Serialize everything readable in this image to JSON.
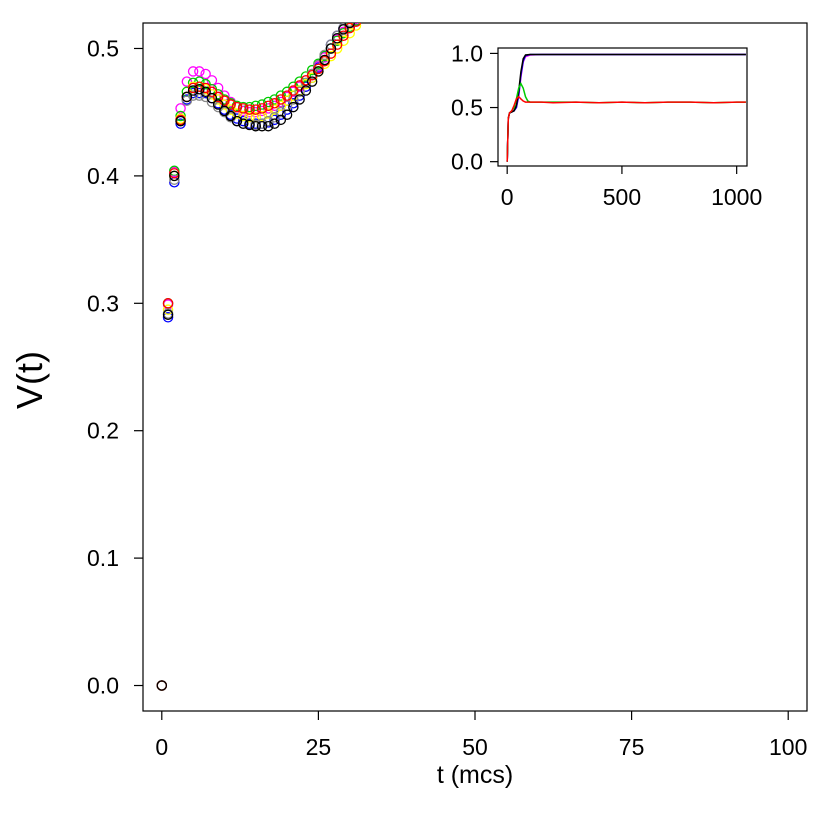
{
  "chart_data": [
    {
      "type": "scatter",
      "role": "main",
      "xlabel": "t (mcs)",
      "ylabel": "V(t)",
      "xlim": [
        -3,
        103
      ],
      "ylim": [
        -0.02,
        0.52
      ],
      "xticks": [
        0,
        25,
        50,
        75,
        100
      ],
      "xtick_labels": [
        "0",
        "25",
        "50",
        "75",
        "100"
      ],
      "yticks": [
        0.0,
        0.1,
        0.2,
        0.3,
        0.4,
        0.5
      ],
      "ytick_labels": [
        "0.0",
        "0.1",
        "0.2",
        "0.3",
        "0.4",
        "0.5"
      ],
      "grid": false,
      "marker": "open-circle",
      "series": [
        {
          "color": "#0000ff",
          "x": [
            0,
            1,
            2,
            3,
            4,
            5,
            6,
            7,
            8,
            9,
            10,
            11,
            12,
            13,
            14,
            15,
            16,
            17,
            18,
            19,
            20,
            21,
            22,
            23,
            24,
            25,
            26,
            27,
            28,
            29,
            30,
            31
          ],
          "y": [
            0,
            0.289,
            0.395,
            0.441,
            0.46,
            0.465,
            0.465,
            0.465,
            0.461,
            0.457,
            0.452,
            0.448,
            0.445,
            0.443,
            0.441,
            0.441,
            0.441,
            0.442,
            0.444,
            0.448,
            0.452,
            0.457,
            0.463,
            0.47,
            0.477,
            0.485,
            0.494,
            0.503,
            0.51,
            0.516,
            0.52,
            0.523
          ]
        },
        {
          "color": "#ff00ff",
          "x": [
            0,
            1,
            2,
            3,
            4,
            5,
            6,
            7,
            8,
            9,
            10,
            11,
            12,
            13,
            14,
            15,
            16,
            17,
            18,
            19,
            20,
            21,
            22,
            23,
            24,
            25,
            26,
            27,
            28,
            29,
            30,
            31
          ],
          "y": [
            0,
            0.299,
            0.403,
            0.453,
            0.474,
            0.482,
            0.482,
            0.48,
            0.475,
            0.469,
            0.463,
            0.458,
            0.454,
            0.451,
            0.45,
            0.45,
            0.451,
            0.453,
            0.455,
            0.458,
            0.462,
            0.466,
            0.47,
            0.475,
            0.48,
            0.486,
            0.493,
            0.5,
            0.507,
            0.513,
            0.519,
            0.523
          ]
        },
        {
          "color": "#00cc00",
          "x": [
            0,
            1,
            2,
            3,
            4,
            5,
            6,
            7,
            8,
            9,
            10,
            11,
            12,
            13,
            14,
            15,
            16,
            17,
            18,
            19,
            20,
            21,
            22,
            23,
            24,
            25,
            26,
            27,
            28,
            29,
            30,
            31
          ],
          "y": [
            0,
            0.3,
            0.404,
            0.447,
            0.466,
            0.473,
            0.474,
            0.472,
            0.468,
            0.464,
            0.46,
            0.457,
            0.455,
            0.454,
            0.454,
            0.455,
            0.456,
            0.458,
            0.46,
            0.463,
            0.466,
            0.47,
            0.474,
            0.478,
            0.483,
            0.488,
            0.494,
            0.5,
            0.506,
            0.512,
            0.517,
            0.522
          ]
        },
        {
          "color": "#ffff00",
          "x": [
            0,
            1,
            2,
            3,
            4,
            5,
            6,
            7,
            8,
            9,
            10,
            11,
            12,
            13,
            14,
            15,
            16,
            17,
            18,
            19,
            20,
            21,
            22,
            23,
            24,
            25,
            26,
            27,
            28,
            29,
            30,
            31
          ],
          "y": [
            0,
            0.295,
            0.4,
            0.445,
            0.462,
            0.47,
            0.47,
            0.468,
            0.464,
            0.46,
            0.456,
            0.452,
            0.449,
            0.447,
            0.446,
            0.446,
            0.447,
            0.449,
            0.452,
            0.455,
            0.459,
            0.463,
            0.467,
            0.472,
            0.477,
            0.482,
            0.488,
            0.494,
            0.5,
            0.506,
            0.512,
            0.518
          ]
        },
        {
          "color": "#888888",
          "x": [
            0,
            1,
            2,
            3,
            4,
            5,
            6,
            7,
            8,
            9,
            10,
            11,
            12,
            13,
            14,
            15,
            16,
            17,
            18,
            19,
            20,
            21,
            22,
            23,
            24,
            25,
            26,
            27,
            28,
            29,
            30,
            31
          ],
          "y": [
            0,
            0.292,
            0.397,
            0.443,
            0.459,
            0.463,
            0.463,
            0.462,
            0.458,
            0.454,
            0.45,
            0.446,
            0.443,
            0.441,
            0.44,
            0.44,
            0.441,
            0.443,
            0.446,
            0.45,
            0.455,
            0.46,
            0.466,
            0.473,
            0.48,
            0.487,
            0.495,
            0.503,
            0.51,
            0.516,
            0.521,
            0.524
          ]
        },
        {
          "color": "#ff0000",
          "x": [
            0,
            1,
            2,
            3,
            4,
            5,
            6,
            7,
            8,
            9,
            10,
            11,
            12,
            13,
            14,
            15,
            16,
            17,
            18,
            19,
            20,
            21,
            22,
            23,
            24,
            25,
            26,
            27,
            28,
            29,
            30,
            31
          ],
          "y": [
            0,
            0.3,
            0.402,
            0.444,
            0.462,
            0.469,
            0.47,
            0.469,
            0.466,
            0.462,
            0.459,
            0.456,
            0.454,
            0.453,
            0.452,
            0.452,
            0.453,
            0.455,
            0.457,
            0.46,
            0.463,
            0.467,
            0.471,
            0.475,
            0.479,
            0.484,
            0.49,
            0.496,
            0.503,
            0.51,
            0.516,
            0.521
          ]
        },
        {
          "color": "#000000",
          "x": [
            0,
            1,
            2,
            3,
            4,
            5,
            6,
            7,
            8,
            9,
            10,
            11,
            12,
            13,
            14,
            15,
            16,
            17,
            18,
            19,
            20,
            21,
            22,
            23,
            24,
            25,
            26,
            27,
            28,
            29,
            30,
            31
          ],
          "y": [
            0,
            0.291,
            0.4,
            0.443,
            0.462,
            0.467,
            0.468,
            0.466,
            0.461,
            0.456,
            0.451,
            0.447,
            0.443,
            0.441,
            0.44,
            0.439,
            0.439,
            0.439,
            0.441,
            0.444,
            0.448,
            0.454,
            0.46,
            0.467,
            0.474,
            0.482,
            0.491,
            0.5,
            0.508,
            0.515,
            0.52,
            0.524
          ]
        }
      ]
    },
    {
      "type": "line",
      "role": "inset",
      "xlim": [
        -40,
        1045
      ],
      "ylim": [
        -0.04,
        1.05
      ],
      "xticks": [
        0,
        500,
        1000
      ],
      "xtick_labels": [
        "0",
        "500",
        "1000"
      ],
      "yticks": [
        0.0,
        0.5,
        1.0
      ],
      "ytick_labels": [
        "0.0",
        "0.5",
        "1.0"
      ],
      "grid": false,
      "series": [
        {
          "color": "#ff00ff",
          "x": [
            0,
            5,
            10,
            20,
            30,
            40,
            50,
            60,
            70,
            80,
            100,
            150,
            300,
            500,
            700,
            900,
            1040
          ],
          "y": [
            0,
            0.4,
            0.45,
            0.47,
            0.47,
            0.5,
            0.6,
            0.78,
            0.92,
            0.97,
            0.985,
            0.99,
            0.99,
            0.99,
            0.99,
            0.99,
            0.99
          ]
        },
        {
          "color": "#0000ff",
          "x": [
            0,
            5,
            10,
            20,
            30,
            40,
            50,
            60,
            70,
            80,
            100,
            150,
            300,
            500,
            700,
            900,
            1040
          ],
          "y": [
            0,
            0.4,
            0.45,
            0.46,
            0.47,
            0.5,
            0.62,
            0.8,
            0.93,
            0.98,
            0.99,
            0.99,
            0.99,
            0.99,
            0.99,
            0.99,
            0.99
          ]
        },
        {
          "color": "#000000",
          "x": [
            0,
            5,
            10,
            20,
            30,
            40,
            50,
            60,
            70,
            80,
            100,
            150,
            300,
            500,
            700,
            900,
            1040
          ],
          "y": [
            0,
            0.4,
            0.45,
            0.46,
            0.47,
            0.52,
            0.65,
            0.83,
            0.95,
            0.985,
            0.99,
            0.99,
            0.99,
            0.99,
            0.99,
            0.99,
            0.99
          ]
        },
        {
          "color": "#00cc00",
          "x": [
            0,
            5,
            10,
            20,
            30,
            40,
            50,
            60,
            70,
            80,
            90,
            100,
            120,
            150,
            200,
            300,
            400,
            500,
            600,
            700,
            800,
            900,
            1000,
            1040
          ],
          "y": [
            0,
            0.4,
            0.45,
            0.47,
            0.5,
            0.58,
            0.68,
            0.72,
            0.68,
            0.6,
            0.56,
            0.55,
            0.55,
            0.55,
            0.55,
            0.55,
            0.545,
            0.55,
            0.545,
            0.55,
            0.55,
            0.545,
            0.55,
            0.55
          ]
        },
        {
          "color": "#ff0000",
          "x": [
            0,
            5,
            10,
            20,
            30,
            40,
            50,
            60,
            70,
            80,
            100,
            120,
            150,
            200,
            300,
            400,
            500,
            600,
            700,
            800,
            900,
            1000,
            1040
          ],
          "y": [
            0,
            0.4,
            0.45,
            0.47,
            0.52,
            0.58,
            0.6,
            0.58,
            0.56,
            0.55,
            0.55,
            0.55,
            0.55,
            0.545,
            0.55,
            0.545,
            0.55,
            0.545,
            0.55,
            0.55,
            0.545,
            0.55,
            0.55
          ]
        }
      ]
    }
  ]
}
